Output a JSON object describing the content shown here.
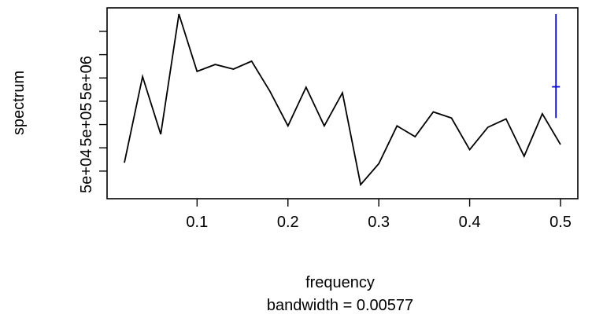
{
  "chart_data": {
    "type": "line",
    "title": "",
    "xlabel": "frequency",
    "sub_xlabel": "bandwidth = 0.00577",
    "ylabel": "spectrum",
    "y_scale": "log10",
    "xlim": [
      0.02,
      0.5
    ],
    "ylim_log10": [
      4.31,
      8.07
    ],
    "x_ticks": [
      0.1,
      0.2,
      0.3,
      0.4,
      0.5
    ],
    "x_tick_labels": [
      "0.1",
      "0.2",
      "0.3",
      "0.4",
      "0.5"
    ],
    "y_ticks_log10": [
      4.7,
      5.2,
      5.7,
      6.2,
      6.7,
      7.2,
      7.7
    ],
    "y_tick_labels": [
      "5e+04",
      "",
      "5e+05",
      "",
      "5e+06",
      "",
      ""
    ],
    "line_color": "#000000",
    "series": [
      {
        "x": [
          0.02,
          0.04,
          0.06,
          0.08,
          0.1,
          0.12,
          0.14,
          0.16,
          0.18,
          0.2,
          0.22,
          0.24,
          0.26,
          0.28,
          0.3,
          0.32,
          0.34,
          0.36,
          0.38,
          0.4,
          0.42,
          0.44,
          0.46,
          0.48,
          0.5
        ],
        "y_log10": [
          4.88,
          6.73,
          5.49,
          8.07,
          6.84,
          6.99,
          6.89,
          7.06,
          6.42,
          5.67,
          6.5,
          5.67,
          6.38,
          4.41,
          4.86,
          5.67,
          5.44,
          5.97,
          5.84,
          5.16,
          5.64,
          5.82,
          5.02,
          5.93,
          5.27
        ]
      }
    ],
    "confidence_bar": {
      "x": 0.495,
      "center_log10": 6.51,
      "low_log10": 5.84,
      "high_log10": 8.07,
      "color": "#0000cc"
    }
  }
}
